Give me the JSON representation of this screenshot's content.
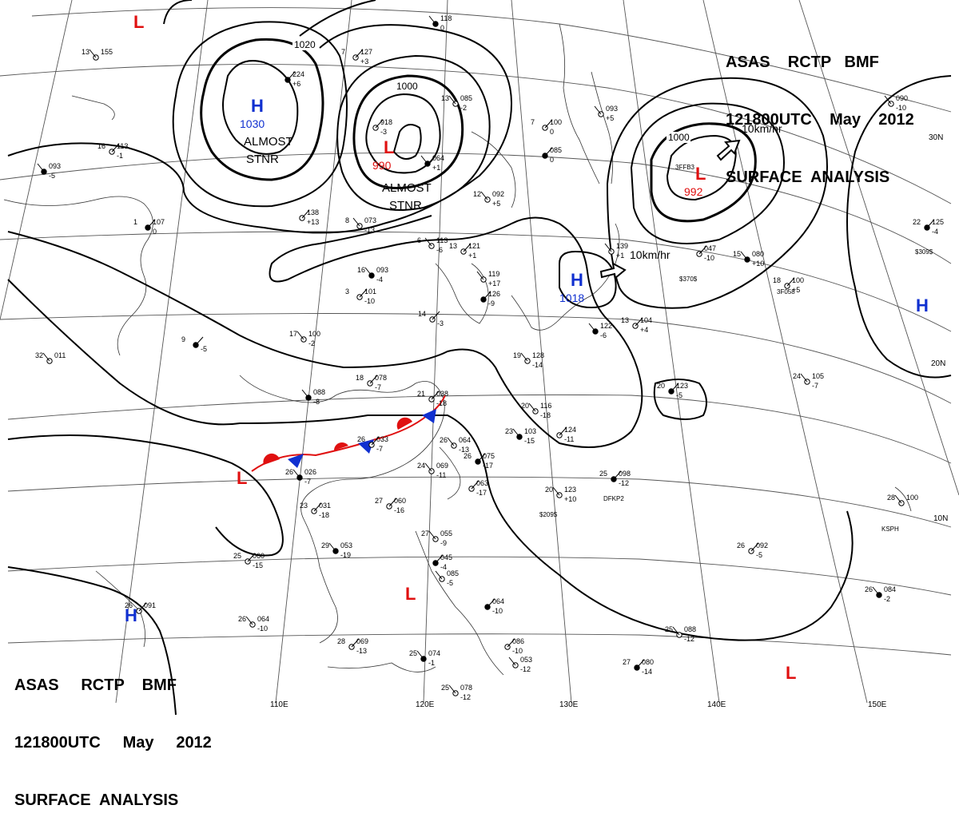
{
  "header_top": {
    "line1": "ASAS    RCTP   BMF",
    "line2": "121800UTC    May    2012",
    "line3": "SURFACE  ANALYSIS"
  },
  "header_bottom": {
    "line1": "ASAS     RCTP    BMF",
    "line2": "121800UTC     May     2012",
    "line3": "SURFACE  ANALYSIS"
  },
  "colors": {
    "high": "#1030d0",
    "low": "#e01010",
    "warm_front": "#e01010",
    "cold_front": "#1030d0",
    "lines": "#000000",
    "grid": "#555555"
  },
  "longitude_labels": [
    "110E",
    "120E",
    "130E",
    "140E",
    "150E"
  ],
  "latitude_labels": [
    "30N",
    "20N",
    "10N"
  ],
  "isobar_labels": [
    "1020",
    "1000",
    "1000"
  ],
  "pressure_centers": [
    {
      "type": "H",
      "value": "1030"
    },
    {
      "type": "L",
      "value": "990"
    },
    {
      "type": "L",
      "value": "992"
    },
    {
      "type": "H",
      "value": "1018"
    },
    {
      "type": "H",
      "value": ""
    },
    {
      "type": "L",
      "value": ""
    },
    {
      "type": "L",
      "value": ""
    },
    {
      "type": "L",
      "value": ""
    },
    {
      "type": "H",
      "value": ""
    },
    {
      "type": "L",
      "value": ""
    }
  ],
  "annotations": [
    "ALMOST",
    "STNR",
    "ALMOST",
    "STNR",
    "10km/hr",
    "10km/hr"
  ],
  "stations": [
    {
      "t": "",
      "p": "118",
      "d": "0"
    },
    {
      "t": "7",
      "p": "127",
      "d": "+3"
    },
    {
      "t": "13",
      "p": "155",
      "d": ""
    },
    {
      "t": "",
      "p": "224",
      "d": "+6"
    },
    {
      "t": "13",
      "p": "085",
      "d": "-2"
    },
    {
      "t": "",
      "p": "918",
      "d": "-3"
    },
    {
      "t": "",
      "p": "064",
      "d": "+1"
    },
    {
      "t": "7",
      "p": "100",
      "d": "0"
    },
    {
      "t": "",
      "p": "093",
      "d": "+5"
    },
    {
      "t": "",
      "p": "085",
      "d": "0"
    },
    {
      "t": "12",
      "p": "092",
      "d": "+5"
    },
    {
      "t": "16",
      "p": "113",
      "d": "-1"
    },
    {
      "t": "",
      "p": "093",
      "d": "-5"
    },
    {
      "t": "",
      "p": "138",
      "d": "+13"
    },
    {
      "t": "8",
      "p": "073",
      "d": "-13"
    },
    {
      "t": "1",
      "p": "107",
      "d": "0"
    },
    {
      "t": "6",
      "p": "113",
      "d": "-6"
    },
    {
      "t": "13",
      "p": "121",
      "d": "+1"
    },
    {
      "t": "16",
      "p": "093",
      "d": "-4"
    },
    {
      "t": "3",
      "p": "101",
      "d": "-10"
    },
    {
      "t": "",
      "p": "119",
      "d": "+17"
    },
    {
      "t": "",
      "p": "126",
      "d": "-9"
    },
    {
      "t": "",
      "p": "139",
      "d": "+1"
    },
    {
      "t": "",
      "p": "047",
      "d": "-10"
    },
    {
      "t": "15",
      "p": "080",
      "d": "+10"
    },
    {
      "t": "18",
      "p": "100",
      "d": "+5"
    },
    {
      "t": "",
      "p": "090",
      "d": "-10"
    },
    {
      "t": "22",
      "p": "125",
      "d": "-4"
    },
    {
      "t": "17",
      "p": "100",
      "d": "-2"
    },
    {
      "t": "14",
      "p": "",
      "d": "-3"
    },
    {
      "t": "",
      "p": "122",
      "d": "-6"
    },
    {
      "t": "13",
      "p": "104",
      "d": "+4"
    },
    {
      "t": "19",
      "p": "128",
      "d": "-14"
    },
    {
      "t": "9",
      "p": "",
      "d": "-5"
    },
    {
      "t": "32",
      "p": "011",
      "d": ""
    },
    {
      "t": "18",
      "p": "078",
      "d": "-7"
    },
    {
      "t": "",
      "p": "088",
      "d": "-8"
    },
    {
      "t": "21",
      "p": "038",
      "d": "-18"
    },
    {
      "t": "20",
      "p": "116",
      "d": "-18"
    },
    {
      "t": "20",
      "p": "123",
      "d": "-5"
    },
    {
      "t": "24",
      "p": "105",
      "d": "-7"
    },
    {
      "t": "26",
      "p": "033",
      "d": "-7"
    },
    {
      "t": "23",
      "p": "103",
      "d": "-15"
    },
    {
      "t": "",
      "p": "124",
      "d": "-11"
    },
    {
      "t": "26",
      "p": "064",
      "d": "-13"
    },
    {
      "t": "26",
      "p": "075",
      "d": "-17"
    },
    {
      "t": "24",
      "p": "069",
      "d": "-11"
    },
    {
      "t": "",
      "p": "063",
      "d": "-17"
    },
    {
      "t": "26",
      "p": "026",
      "d": "-7"
    },
    {
      "t": "27",
      "p": "060",
      "d": "-16"
    },
    {
      "t": "20",
      "p": "123",
      "d": "+10"
    },
    {
      "t": "25",
      "p": "098",
      "d": "-12"
    },
    {
      "t": "28",
      "p": "100",
      "d": ""
    },
    {
      "t": "23",
      "p": "031",
      "d": "-18"
    },
    {
      "t": "29",
      "p": "053",
      "d": "-19"
    },
    {
      "t": "25",
      "p": "060",
      "d": "-15"
    },
    {
      "t": "27",
      "p": "055",
      "d": "-9"
    },
    {
      "t": "",
      "p": "045",
      "d": "-4"
    },
    {
      "t": "",
      "p": "085",
      "d": "-5"
    },
    {
      "t": "26",
      "p": "092",
      "d": "-5"
    },
    {
      "t": "26",
      "p": "084",
      "d": "-2"
    },
    {
      "t": "26",
      "p": "091",
      "d": ""
    },
    {
      "t": "26",
      "p": "064",
      "d": "-10"
    },
    {
      "t": "",
      "p": "064",
      "d": "-10"
    },
    {
      "t": "25",
      "p": "088",
      "d": "-12"
    },
    {
      "t": "28",
      "p": "069",
      "d": "-13"
    },
    {
      "t": "25",
      "p": "074",
      "d": "-1"
    },
    {
      "t": "",
      "p": "086",
      "d": "-10"
    },
    {
      "t": "",
      "p": "053",
      "d": "-12"
    },
    {
      "t": "27",
      "p": "080",
      "d": "-14"
    },
    {
      "t": "25",
      "p": "078",
      "d": "-12"
    }
  ],
  "ship_ids": [
    "$370$",
    "3F058",
    "3FFB3",
    "DFKP2",
    "$209$",
    "KSPH",
    "$309$"
  ]
}
